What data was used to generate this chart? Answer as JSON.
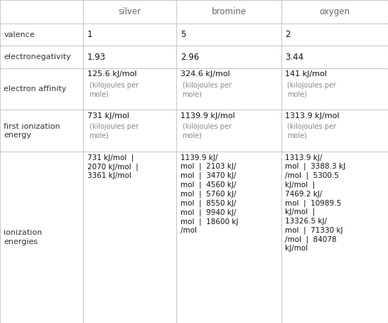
{
  "col_headers": [
    "silver",
    "bromine",
    "oxygen"
  ],
  "col_header_color": "#666666",
  "border_color": "#cccccc",
  "label_color": "#333333",
  "value_color": "#111111",
  "sub_color": "#888888",
  "figsize": [
    5.46,
    4.54
  ],
  "dpi": 100,
  "rows": [
    {
      "label": "valence",
      "values": [
        "1",
        "5",
        "2"
      ],
      "type": "simple"
    },
    {
      "label": "electronegativity",
      "values": [
        "1.93",
        "2.96",
        "3.44"
      ],
      "type": "simple"
    },
    {
      "label": "electron affinity",
      "values_main": [
        "125.6 kJ/mol",
        "324.6 kJ/mol",
        "141 kJ/mol"
      ],
      "values_sub": [
        "(kilojoules per\nmole)",
        "(kilojoules per\nmole)",
        "(kilojoules per\nmole)"
      ],
      "type": "kjmol"
    },
    {
      "label": "first ionization\nenergy",
      "values_main": [
        "731 kJ/mol",
        "1139.9 kJ/mol",
        "1313.9 kJ/mol"
      ],
      "values_sub": [
        "(kilojoules per\nmole)",
        "(kilojoules per\nmole)",
        "(kilojoules per\nmole)"
      ],
      "type": "kjmol"
    },
    {
      "label": "ionization\nenergies",
      "values_plain": [
        "731 kJ/mol  |\n2070 kJ/mol  |\n3361 kJ/mol",
        "1139.9 kJ/\nmol  |  2103 kJ/\nmol  |  3470 kJ/\nmol  |  4560 kJ/\nmol  |  5760 kJ/\nmol  |  8550 kJ/\nmol  |  9940 kJ/\nmol  |  18600 kJ\n/mol",
        "1313.9 kJ/\nmol  |  3388.3 kJ\n/mol  |  5300.5\nkJ/mol  |\n7469.2 kJ/\nmol  |  10989.5\nkJ/mol  |\n13326.5 kJ/\nmol  |  71330 kJ\n/mol  |  84078\nkJ/mol"
      ],
      "type": "ionization"
    }
  ]
}
